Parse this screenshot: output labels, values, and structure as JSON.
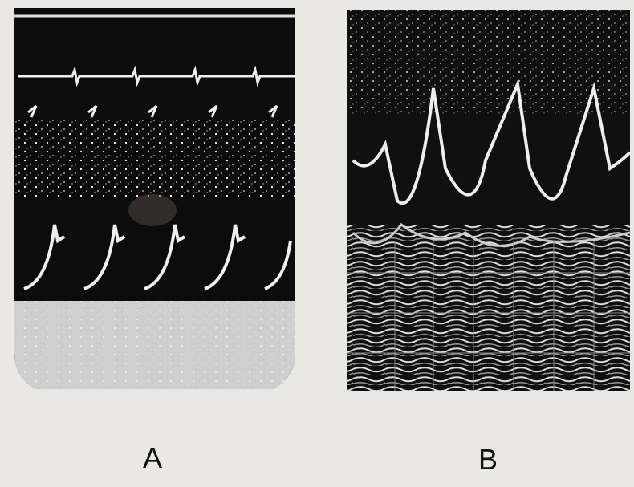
{
  "panels": [
    {
      "label": "A"
    },
    {
      "label": "B"
    }
  ]
}
